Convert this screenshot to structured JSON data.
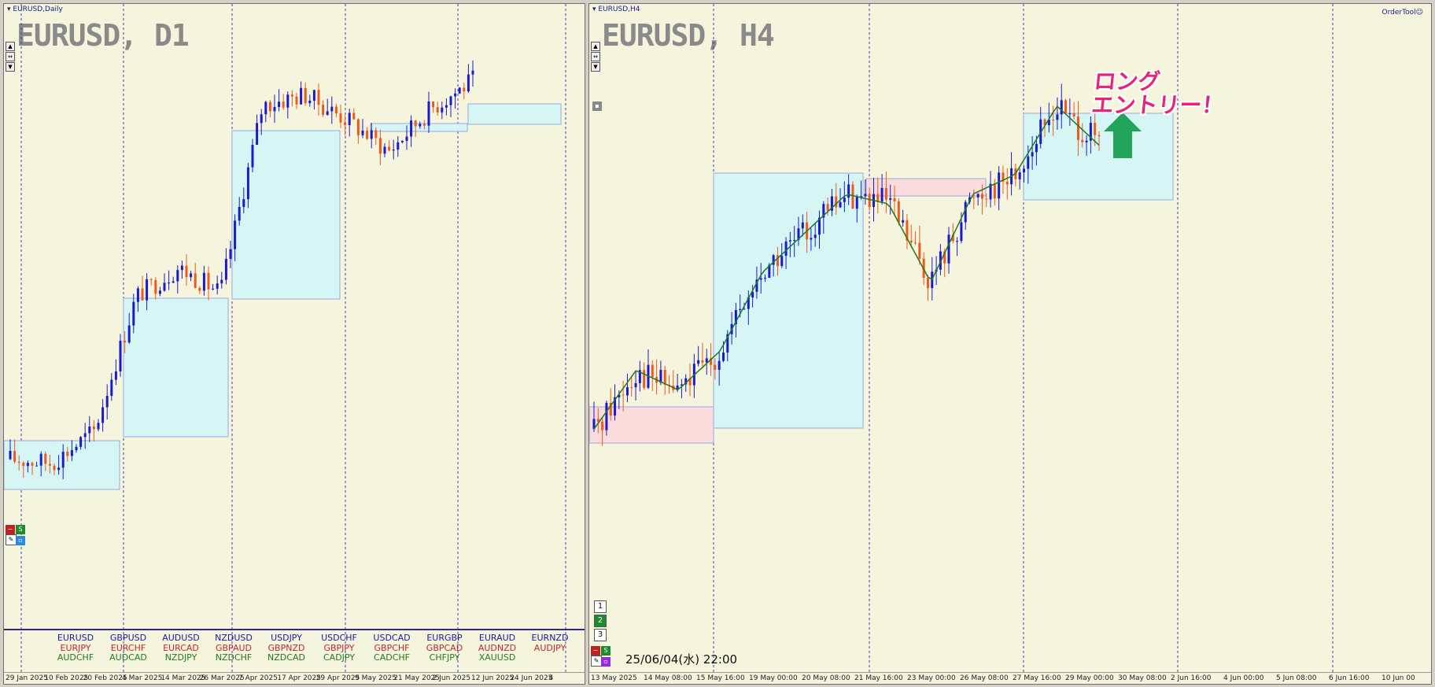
{
  "left_pane": {
    "window_title": "EURUSD,Daily",
    "symbol_title": "EURUSD, D1",
    "x_axis_labels": [
      "29 Jan 2025",
      "10 Feb 2025",
      "20 Feb 2025",
      "4 Mar 2025",
      "14 Mar 2025",
      "26 Mar 2025",
      "7 Apr 2025",
      "17 Apr 2025",
      "29 Apr 2025",
      "9 May 2025",
      "21 May 2025",
      "2 Jun 2025",
      "12 Jun 2025",
      "24 Jun 2025",
      "4"
    ],
    "pair_columns": [
      [
        "EURUSD",
        "EURJPY",
        "AUDCHF"
      ],
      [
        "GBPUSD",
        "EURCHF",
        "AUDCAD"
      ],
      [
        "AUDUSD",
        "EURCAD",
        "NZDJPY"
      ],
      [
        "NZDUSD",
        "GBPAUD",
        "NZDCHF"
      ],
      [
        "USDJPY",
        "GBPNZD",
        "NZDCAD"
      ],
      [
        "USDCHF",
        "GBPJPY",
        "CADJPY"
      ],
      [
        "USDCAD",
        "GBPCHF",
        "CADCHF"
      ],
      [
        "EURGBP",
        "GBPCAD",
        "CHFJPY"
      ],
      [
        "EURAUD",
        "AUDNZD",
        "XAUUSD"
      ],
      [
        "EURNZD",
        "AUDJPY",
        ""
      ]
    ],
    "pair_row_colors": [
      "#1a1aa0",
      "#c0282e",
      "#207a20"
    ],
    "buttons": {
      "minus": "−",
      "s": "S"
    }
  },
  "right_pane": {
    "window_title": "EURUSD,H4",
    "symbol_title": "EURUSD, H4",
    "order_tool": "OrderTool☺",
    "annotation_line1": "ロング",
    "annotation_line2": "エントリー！",
    "timestamp": "25/06/04(水) 22:00",
    "x_axis_labels": [
      "13 May 2025",
      "14 May 08:00",
      "15 May 16:00",
      "19 May 00:00",
      "20 May 08:00",
      "21 May 16:00",
      "23 May 00:00",
      "26 May 08:00",
      "27 May 16:00",
      "29 May 00:00",
      "30 May 08:00",
      "2 Jun 16:00",
      "4 Jun 00:00",
      "5 Jun 08:00",
      "6 Jun 16:00",
      "10 Jun 00"
    ],
    "num_buttons": [
      "1",
      "2",
      "3"
    ],
    "buttons": {
      "minus": "−",
      "s": "S"
    }
  },
  "colors": {
    "background": "#f5f4dc",
    "bull": "#1a1acc",
    "bear": "#ee5a1c",
    "box": "#d6f6f6",
    "box_pink": "#fbdcdc",
    "ma": "#1f7a1f",
    "arrow": "#21a35a",
    "annotation": "#e8247a"
  },
  "chart_data": [
    {
      "type": "candlestick",
      "title": "EURUSD, D1",
      "timeframe": "Daily",
      "x": [
        "29 Jan 2025",
        "10 Feb 2025",
        "20 Feb 2025",
        "4 Mar 2025",
        "14 Mar 2025",
        "26 Mar 2025",
        "7 Apr 2025",
        "17 Apr 2025",
        "29 Apr 2025",
        "9 May 2025",
        "21 May 2025",
        "2 Jun 2025",
        "12 Jun 2025",
        "24 Jun 2025"
      ],
      "trend_closes": [
        1.035,
        1.034,
        1.043,
        1.081,
        1.089,
        1.082,
        1.135,
        1.138,
        1.131,
        1.122,
        1.134,
        1.142
      ]
    },
    {
      "type": "candlestick",
      "title": "EURUSD, H4",
      "timeframe": "H4",
      "x": [
        "13 May 2025",
        "14 May 08:00",
        "15 May 16:00",
        "19 May 00:00",
        "20 May 08:00",
        "21 May 16:00",
        "23 May 00:00",
        "26 May 08:00",
        "27 May 16:00",
        "29 May 00:00",
        "30 May 08:00",
        "2 Jun 16:00",
        "4 Jun 00:00",
        "5 Jun 08:00",
        "6 Jun 16:00",
        "10 Jun 00"
      ],
      "trend_closes": [
        1.113,
        1.119,
        1.117,
        1.121,
        1.129,
        1.133,
        1.137,
        1.136,
        1.128,
        1.137,
        1.139,
        1.146,
        1.142
      ]
    }
  ]
}
